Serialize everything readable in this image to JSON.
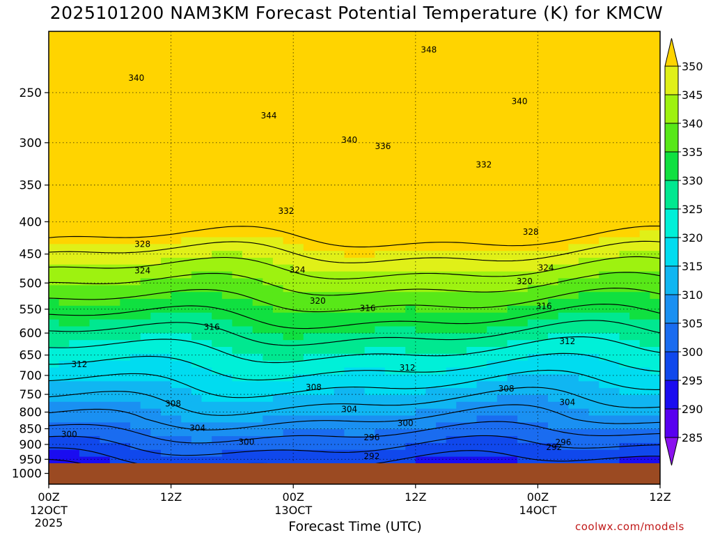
{
  "title": "2025101200 NAM3KM Forecast Potential Temperature (K) for KMCW",
  "credit": "coolwx.com/models",
  "chart_data": {
    "type": "heatmap",
    "title": "2025101200 NAM3KM Forecast Potential Temperature (K) for KMCW",
    "xlabel": "Forecast Time (UTC)",
    "ylabel": "",
    "x_unit": "forecast hour",
    "xlim": [
      0,
      60
    ],
    "x_ticks": [
      {
        "hour": 0,
        "label": "00Z",
        "sub": "12OCT",
        "sub2": "2025"
      },
      {
        "hour": 12,
        "label": "12Z",
        "sub": "",
        "sub2": ""
      },
      {
        "hour": 24,
        "label": "00Z",
        "sub": "13OCT",
        "sub2": ""
      },
      {
        "hour": 36,
        "label": "12Z",
        "sub": "",
        "sub2": ""
      },
      {
        "hour": 48,
        "label": "00Z",
        "sub": "14OCT",
        "sub2": ""
      },
      {
        "hour": 60,
        "label": "12Z",
        "sub": "",
        "sub2": ""
      }
    ],
    "y_unit": "hPa",
    "ylim": [
      1040,
      200
    ],
    "y_ticks": [
      250,
      300,
      350,
      400,
      450,
      500,
      550,
      600,
      650,
      700,
      750,
      800,
      850,
      900,
      950,
      1000
    ],
    "colorbar": {
      "levels": [
        285,
        290,
        295,
        300,
        305,
        310,
        315,
        320,
        325,
        330,
        335,
        340,
        345,
        350
      ],
      "colors": [
        "#8a12ee",
        "#5800f0",
        "#1a0cf0",
        "#1048ec",
        "#1a6cf0",
        "#1a90f2",
        "#10b6f2",
        "#00dcf0",
        "#00f0d8",
        "#00e890",
        "#10e040",
        "#58e818",
        "#9ef210",
        "#e0f018",
        "#ffd400"
      ]
    },
    "contour_labels": [
      {
        "value": "348",
        "hour": 37.3,
        "p": 214
      },
      {
        "value": "340",
        "hour": 8.6,
        "p": 237
      },
      {
        "value": "340",
        "hour": 46.2,
        "p": 258
      },
      {
        "value": "344",
        "hour": 21.6,
        "p": 272
      },
      {
        "value": "340",
        "hour": 29.5,
        "p": 297
      },
      {
        "value": "336",
        "hour": 32.8,
        "p": 304
      },
      {
        "value": "332",
        "hour": 42.7,
        "p": 325
      },
      {
        "value": "332",
        "hour": 23.3,
        "p": 385
      },
      {
        "value": "328",
        "hour": 9.2,
        "p": 434
      },
      {
        "value": "328",
        "hour": 47.3,
        "p": 415
      },
      {
        "value": "324",
        "hour": 9.2,
        "p": 478
      },
      {
        "value": "324",
        "hour": 24.4,
        "p": 477
      },
      {
        "value": "324",
        "hour": 48.8,
        "p": 473
      },
      {
        "value": "320",
        "hour": 46.7,
        "p": 497
      },
      {
        "value": "320",
        "hour": 26.4,
        "p": 534
      },
      {
        "value": "316",
        "hour": 31.3,
        "p": 548
      },
      {
        "value": "316",
        "hour": 48.6,
        "p": 544
      },
      {
        "value": "316",
        "hour": 16.0,
        "p": 587
      },
      {
        "value": "312",
        "hour": 50.9,
        "p": 618
      },
      {
        "value": "312",
        "hour": 3.0,
        "p": 672
      },
      {
        "value": "312",
        "hour": 35.2,
        "p": 681
      },
      {
        "value": "308",
        "hour": 26.0,
        "p": 731
      },
      {
        "value": "308",
        "hour": 44.9,
        "p": 735
      },
      {
        "value": "308",
        "hour": 12.2,
        "p": 776
      },
      {
        "value": "304",
        "hour": 50.9,
        "p": 772
      },
      {
        "value": "304",
        "hour": 29.5,
        "p": 792
      },
      {
        "value": "304",
        "hour": 14.6,
        "p": 848
      },
      {
        "value": "300",
        "hour": 35.0,
        "p": 833
      },
      {
        "value": "300",
        "hour": 2.0,
        "p": 867
      },
      {
        "value": "300",
        "hour": 19.4,
        "p": 892
      },
      {
        "value": "296",
        "hour": 31.7,
        "p": 878
      },
      {
        "value": "296",
        "hour": 50.5,
        "p": 893
      },
      {
        "value": "292",
        "hour": 49.6,
        "p": 909
      },
      {
        "value": "292",
        "hour": 31.7,
        "p": 940
      }
    ]
  }
}
